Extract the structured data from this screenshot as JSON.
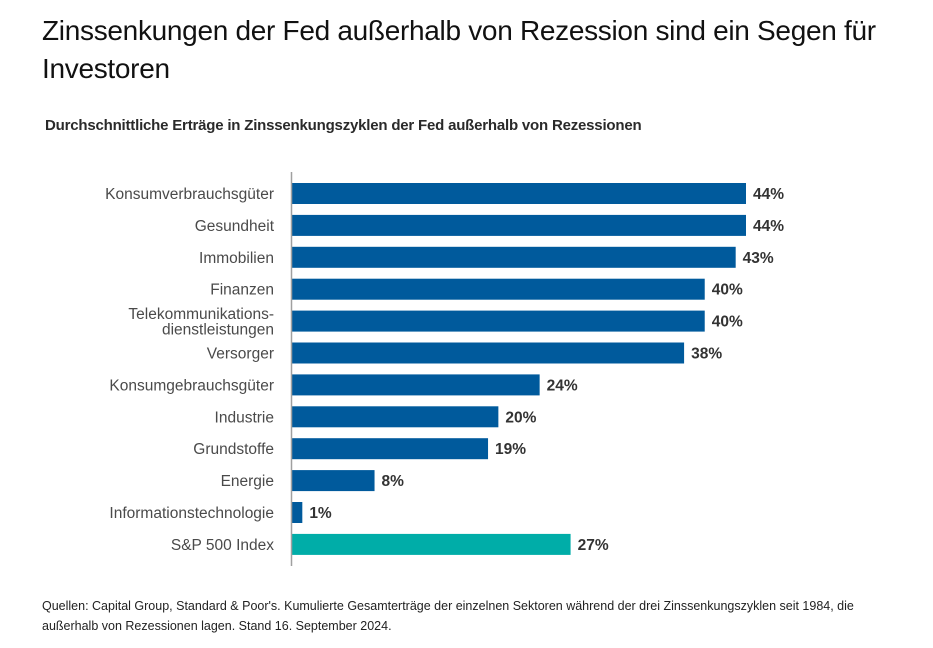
{
  "header": {
    "title": "Zinssenkungen der Fed außerhalb von Rezession sind ein Segen für Investoren"
  },
  "footer": {
    "note": "Quellen: Capital Group, Standard & Poor's. Kumulierte Gesamterträge der einzelnen Sektoren während der drei Zinssenkungszyklen seit 1984, die außerhalb von Rezessionen lagen. Stand 16. September 2024."
  },
  "colors": {
    "sector_bar": "#005a9c",
    "index_bar": "#00ada8",
    "axis": "#a0a0a0"
  },
  "chart_data": {
    "type": "bar",
    "orientation": "horizontal",
    "title": "Durchschnittliche Erträge in Zinssenkungszyklen der Fed außerhalb von Rezessionen",
    "xlabel": "",
    "ylabel": "",
    "unit": "%",
    "xlim": [
      0,
      44
    ],
    "grid": false,
    "legend": "none",
    "categories": [
      [
        "Konsumverbrauchsgüter"
      ],
      [
        "Gesundheit"
      ],
      [
        "Immobilien"
      ],
      [
        "Finanzen"
      ],
      [
        "Telekommunikations-",
        "dienstleistungen"
      ],
      [
        "Versorger"
      ],
      [
        "Konsumgebrauchsgüter"
      ],
      [
        "Industrie"
      ],
      [
        "Grundstoffe"
      ],
      [
        "Energie"
      ],
      [
        "Informationstechnologie"
      ],
      [
        "S&P 500 Index"
      ]
    ],
    "values": [
      44,
      44,
      43,
      40,
      40,
      38,
      24,
      20,
      19,
      8,
      1,
      27
    ],
    "value_labels": [
      "44%",
      "44%",
      "43%",
      "40%",
      "40%",
      "38%",
      "24%",
      "20%",
      "19%",
      "8%",
      "1%",
      "27%"
    ],
    "highlight": [
      false,
      false,
      false,
      false,
      false,
      false,
      false,
      false,
      false,
      false,
      false,
      true
    ]
  }
}
